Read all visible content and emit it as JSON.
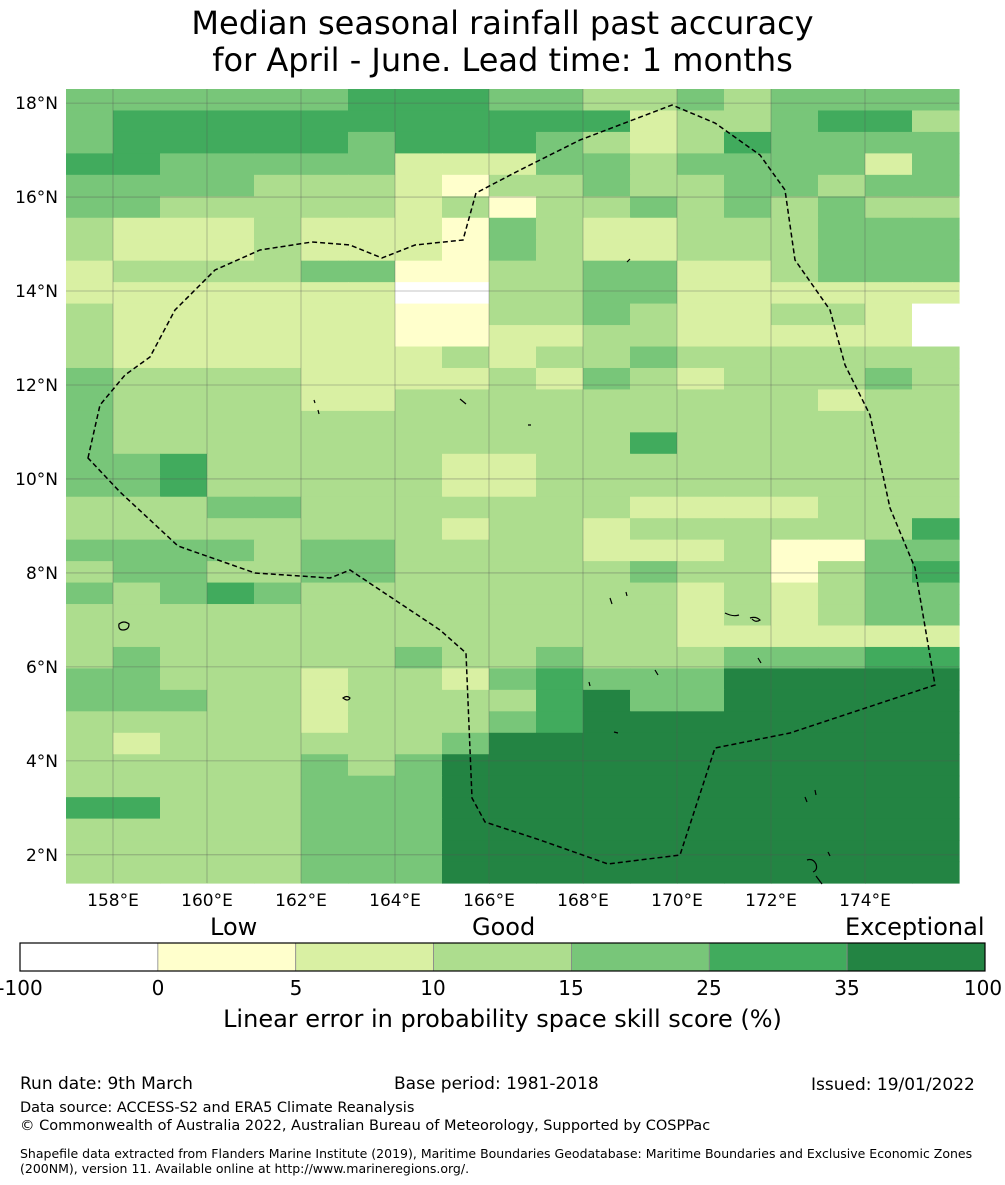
{
  "title": {
    "line1": "Median seasonal rainfall past accuracy",
    "line2": "for April - June. Lead time: 1 months"
  },
  "map": {
    "lon_range": [
      157,
      176
    ],
    "lat_range": [
      1.4,
      18.3
    ],
    "lat_ticks": [
      "18°N",
      "16°N",
      "14°N",
      "12°N",
      "10°N",
      "8°N",
      "6°N",
      "4°N",
      "2°N"
    ],
    "lon_ticks": [
      "158°E",
      "160°E",
      "162°E",
      "164°E",
      "166°E",
      "168°E",
      "170°E",
      "172°E",
      "174°E"
    ],
    "grid": true,
    "eez_boundary_style": "dashed",
    "skill_grid_rows_north_to_south": [
      "4444445554433434444",
      "4555555555552334553",
      "4555554555432354444",
      "5544444222443444424",
      "4444333213343344344",
      "4433333231334343433",
      "3222322214322333444",
      "3222322214322333444",
      "2333344113344223444",
      "2222222003344222222",
      "3222222113343223320",
      "3222222112233222220",
      "3222222232334333333",
      "4333322223243233343",
      "4333322333333333233",
      "4333333333333333333",
      "4333333333335333333",
      "4453333322333333333",
      "4453333322333333333",
      "3334433333332222333",
      "3333333323323333335",
      "4444344333322231144",
      "3443344333334331345",
      "4345433333333232344",
      "3333333333333232344",
      "3333333333333222222",
      "3433333433433344455",
      "4433323324544466666",
      "4443323333564466666",
      "3333323334566666666",
      "3233333346666666666",
      "3333343466666666666",
      "3333344466666666666",
      "5533344466666666666",
      "3333344466666666666",
      "3333344466666666666",
      "3333344466666666666"
    ]
  },
  "colorbar": {
    "categories": [
      "Low",
      "Good",
      "Exceptional"
    ],
    "ticks": [
      "-100",
      "0",
      "5",
      "10",
      "15",
      "25",
      "35",
      "100"
    ],
    "colors": [
      "#ffffff",
      "#ffffcc",
      "#d9f0a3",
      "#addd8e",
      "#78c679",
      "#41ab5d",
      "#238443"
    ],
    "label": "Linear error in probability space skill score (%)"
  },
  "footer": {
    "run_date": "Run date: 9th March",
    "base_period": "Base period: 1981-2018",
    "issued": "Issued: 19/01/2022",
    "data_source": "Data source: ACCESS-S2 and ERA5 Climate Reanalysis",
    "copyright": "© Commonwealth of Australia 2022, Australian Bureau of Meteorology, Supported by COSPPac",
    "shapefile_note": "Shapefile data extracted from Flanders Marine Institute (2019), Maritime Boundaries Geodatabase: Maritime Boundaries and Exclusive Economic Zones (200NM), version 11. Available online at http://www.marineregions.org/."
  }
}
